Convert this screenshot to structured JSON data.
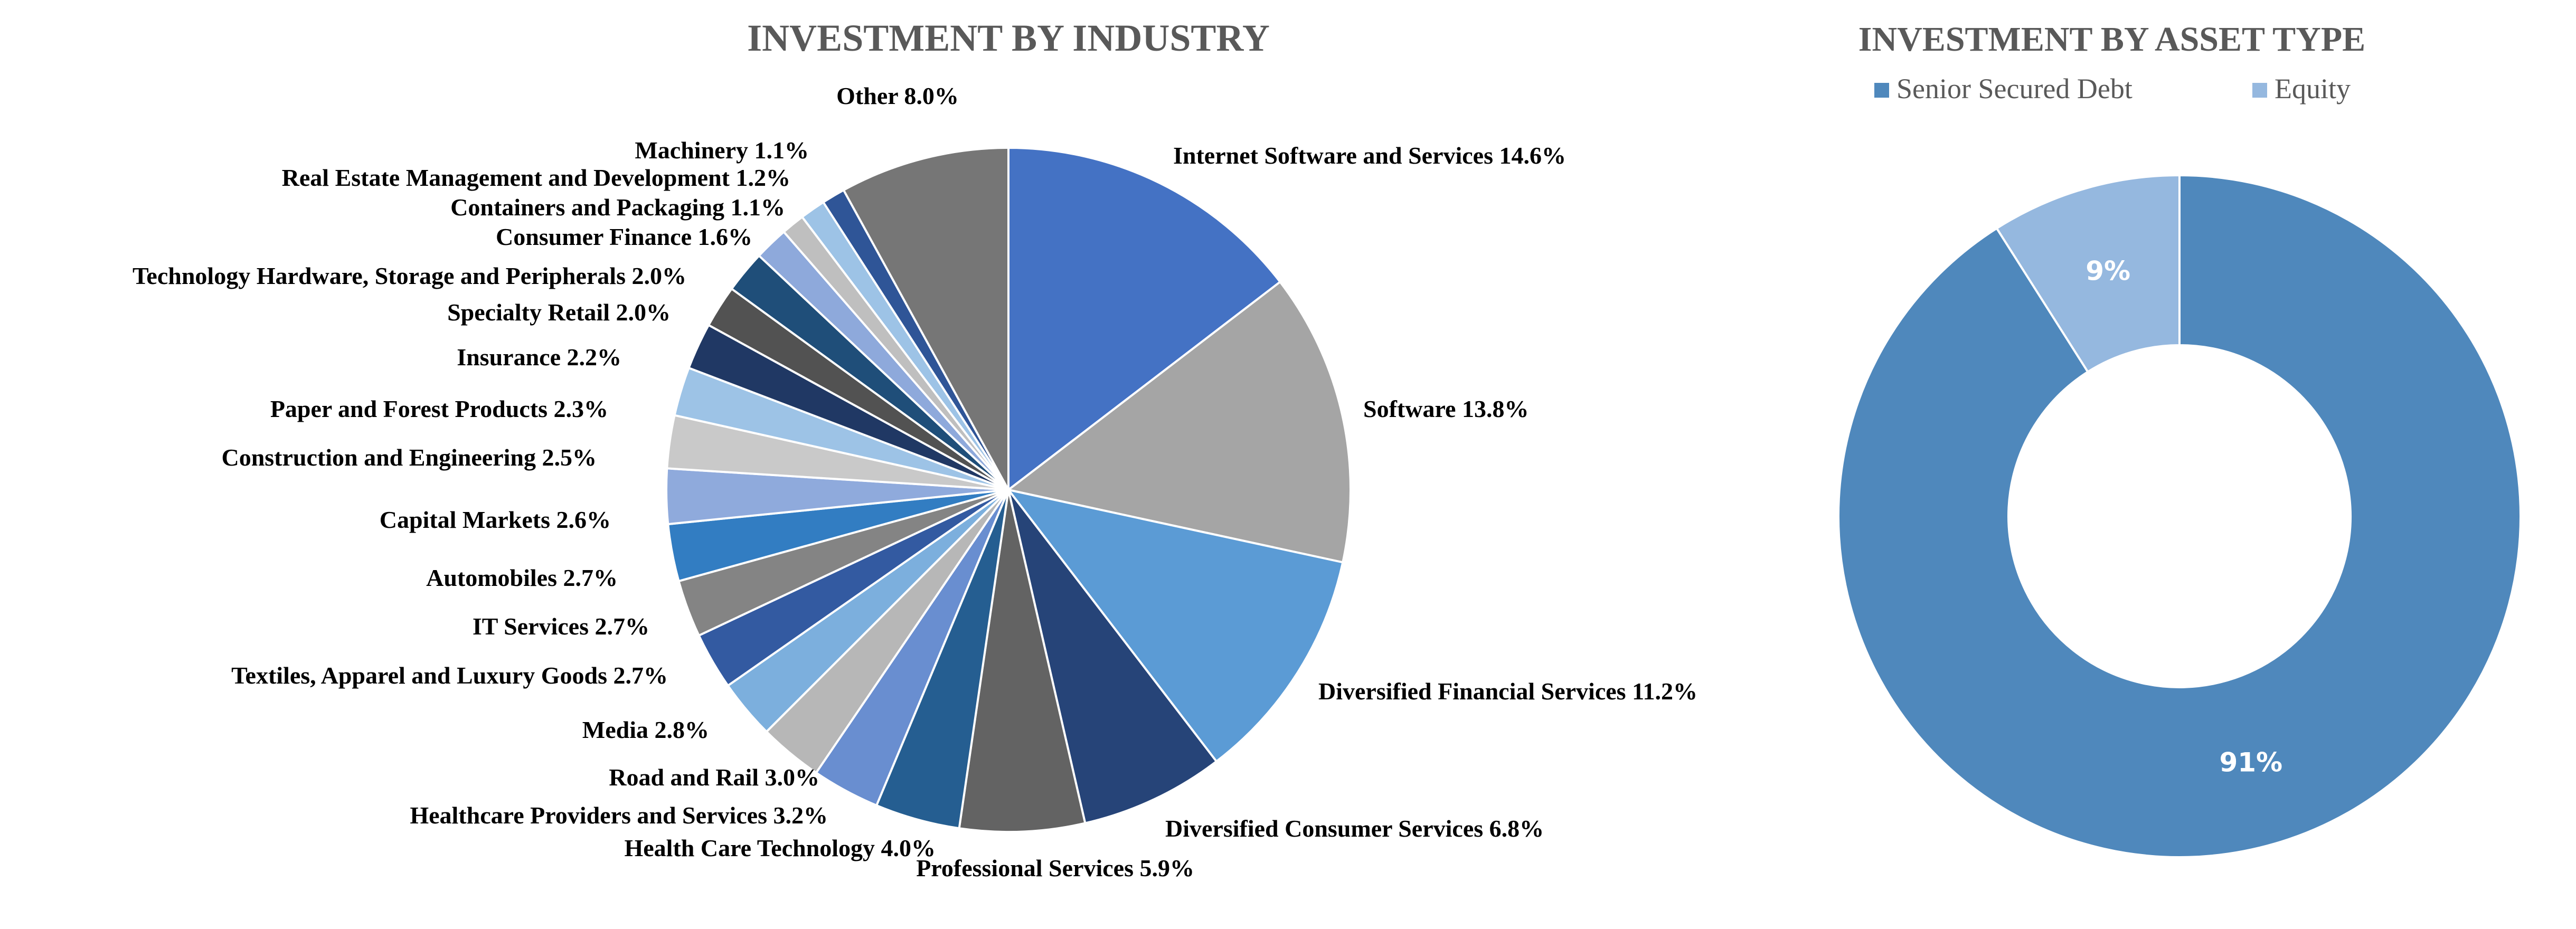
{
  "chart_data": [
    {
      "type": "pie",
      "title": "INVESTMENT BY INDUSTRY",
      "unit": "%",
      "slices": [
        {
          "label": "Internet Software and Services 14.6%",
          "value": 14.6,
          "color": "#4472C4"
        },
        {
          "label": "Software 13.8%",
          "value": 13.8,
          "color": "#A5A5A5"
        },
        {
          "label": "Diversified Financial Services 11.2%",
          "value": 11.2,
          "color": "#5B9BD5"
        },
        {
          "label": "Diversified Consumer Services 6.8%",
          "value": 6.8,
          "color": "#264478"
        },
        {
          "label": "Professional Services 5.9%",
          "value": 5.9,
          "color": "#636363"
        },
        {
          "label": "Health Care Technology 4.0%",
          "value": 4.0,
          "color": "#255E91"
        },
        {
          "label": "Healthcare Providers and Services 3.2%",
          "value": 3.2,
          "color": "#698ED0"
        },
        {
          "label": "Road and Rail 3.0%",
          "value": 3.0,
          "color": "#B7B7B7"
        },
        {
          "label": "Media 2.8%",
          "value": 2.8,
          "color": "#7CAFDD"
        },
        {
          "label": "Textiles, Apparel and Luxury Goods 2.7%",
          "value": 2.7,
          "color": "#335AA1"
        },
        {
          "label": "IT Services 2.7%",
          "value": 2.7,
          "color": "#848484"
        },
        {
          "label": "Automobiles 2.7%",
          "value": 2.7,
          "color": "#327DC2"
        },
        {
          "label": "Capital Markets 2.6%",
          "value": 2.6,
          "color": "#8FAADC"
        },
        {
          "label": "Construction and Engineering 2.5%",
          "value": 2.5,
          "color": "#C9C9C9"
        },
        {
          "label": "Paper and Forest Products 2.3%",
          "value": 2.3,
          "color": "#9DC3E6"
        },
        {
          "label": "Insurance 2.2%",
          "value": 2.2,
          "color": "#203864"
        },
        {
          "label": "Specialty Retail 2.0%",
          "value": 2.0,
          "color": "#525252"
        },
        {
          "label": "Technology Hardware, Storage and Peripherals 2.0%",
          "value": 2.0,
          "color": "#1F4E79"
        },
        {
          "label": "Consumer Finance 1.6%",
          "value": 1.6,
          "color": "#8EA9DB"
        },
        {
          "label": "Containers and Packaging 1.1%",
          "value": 1.1,
          "color": "#BFBFBF"
        },
        {
          "label": "Real Estate Management and Development 1.2%",
          "value": 1.2,
          "color": "#9DC3E6"
        },
        {
          "label": "Machinery 1.1%",
          "value": 1.1,
          "color": "#2F5597"
        },
        {
          "label": "Other 8.0%",
          "value": 8.0,
          "color": "#767676"
        }
      ]
    },
    {
      "type": "pie",
      "subtype": "donut",
      "title": "INVESTMENT BY ASSET TYPE",
      "legend_position": "top",
      "unit": "%",
      "slices": [
        {
          "name": "Senior Secured Debt",
          "label": "91%",
          "value": 91,
          "color": "#4F88BC"
        },
        {
          "name": "Equity",
          "label": "9%",
          "value": 9,
          "color": "#95B8DF"
        }
      ]
    }
  ]
}
